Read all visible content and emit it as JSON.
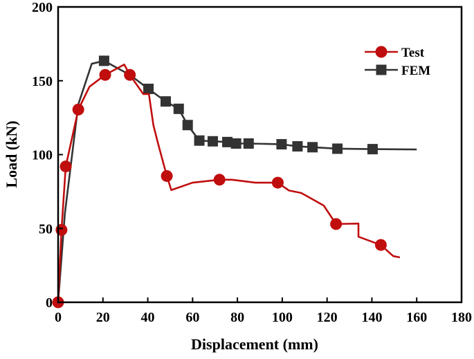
{
  "chart_data": {
    "type": "line",
    "title": "",
    "xlabel": "Displacement (mm)",
    "ylabel": "Load (kN)",
    "xlim": [
      0,
      180
    ],
    "ylim": [
      0,
      200
    ],
    "xticks": [
      0,
      20,
      40,
      60,
      80,
      100,
      120,
      140,
      160,
      180
    ],
    "yticks": [
      0,
      50,
      100,
      150,
      200
    ],
    "grid": false,
    "legend_position": "top-right",
    "series": [
      {
        "name": "Test",
        "color": "#c00d0d",
        "marker": "circle",
        "line": [
          [
            0,
            0
          ],
          [
            1.5,
            49
          ],
          [
            3.4,
            92
          ],
          [
            9,
            130.5
          ],
          [
            14,
            146
          ],
          [
            21,
            154
          ],
          [
            29.5,
            161
          ],
          [
            32,
            154
          ],
          [
            38,
            141
          ],
          [
            40.5,
            141
          ],
          [
            42.5,
            120
          ],
          [
            44.5,
            108
          ],
          [
            48.5,
            85.5
          ],
          [
            50.5,
            76
          ],
          [
            60,
            81
          ],
          [
            72,
            83
          ],
          [
            77.5,
            83
          ],
          [
            88,
            81
          ],
          [
            98,
            81
          ],
          [
            103,
            75.7
          ],
          [
            108.5,
            74
          ],
          [
            118.5,
            65.5
          ],
          [
            124,
            53
          ],
          [
            134,
            53.3
          ],
          [
            134,
            44.4
          ],
          [
            144,
            38.8
          ],
          [
            149.5,
            31.3
          ],
          [
            152.5,
            30.4
          ]
        ],
        "markers": [
          [
            0,
            0
          ],
          [
            1.5,
            49
          ],
          [
            3.4,
            92
          ],
          [
            9,
            130.5
          ],
          [
            21,
            154
          ],
          [
            32,
            154
          ],
          [
            48.5,
            85.5
          ],
          [
            72,
            83
          ],
          [
            98,
            81
          ],
          [
            124,
            53
          ],
          [
            144,
            38.8
          ]
        ]
      },
      {
        "name": "FEM",
        "color": "#333333",
        "marker": "square",
        "line": [
          [
            0,
            0
          ],
          [
            3,
            60
          ],
          [
            9,
            134
          ],
          [
            15,
            161.5
          ],
          [
            20.5,
            163.5
          ],
          [
            32,
            154
          ],
          [
            40.3,
            144.5
          ],
          [
            48,
            136
          ],
          [
            53.8,
            131
          ],
          [
            57.8,
            120
          ],
          [
            63,
            109.5
          ],
          [
            69,
            109
          ],
          [
            75.5,
            108.5
          ],
          [
            79.4,
            107.5
          ],
          [
            85,
            107.5
          ],
          [
            99.7,
            107
          ],
          [
            106.8,
            105.6
          ],
          [
            113.5,
            105
          ],
          [
            124.6,
            104
          ],
          [
            140.3,
            103.7
          ],
          [
            160,
            103.5
          ]
        ],
        "markers": [
          [
            20.5,
            163.5
          ],
          [
            40.3,
            144.5
          ],
          [
            48,
            136
          ],
          [
            53.8,
            131
          ],
          [
            57.8,
            120
          ],
          [
            63,
            109.5
          ],
          [
            69,
            109
          ],
          [
            75.5,
            108.5
          ],
          [
            79.4,
            107.5
          ],
          [
            85,
            107.5
          ],
          [
            99.7,
            107
          ],
          [
            106.8,
            105.6
          ],
          [
            113.5,
            105
          ],
          [
            124.6,
            104
          ],
          [
            140.3,
            103.7
          ]
        ]
      }
    ]
  }
}
